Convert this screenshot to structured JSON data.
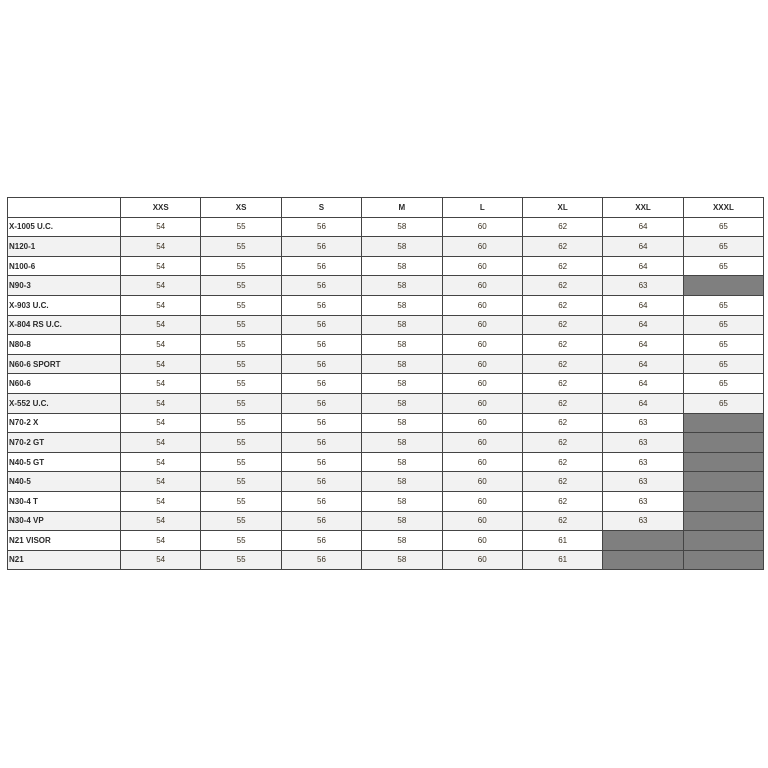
{
  "headers": [
    "",
    "XXS",
    "XS",
    "S",
    "M",
    "L",
    "XL",
    "XXL",
    "XXXL"
  ],
  "rows": [
    {
      "name": "X-1005 U.C.",
      "values": [
        "54",
        "55",
        "56",
        "58",
        "60",
        "62",
        "64",
        "65"
      ]
    },
    {
      "name": "N120-1",
      "values": [
        "54",
        "55",
        "56",
        "58",
        "60",
        "62",
        "64",
        "65"
      ]
    },
    {
      "name": "N100-6",
      "values": [
        "54",
        "55",
        "56",
        "58",
        "60",
        "62",
        "64",
        "65"
      ]
    },
    {
      "name": "N90-3",
      "values": [
        "54",
        "55",
        "56",
        "58",
        "60",
        "62",
        "63",
        null
      ]
    },
    {
      "name": "X-903 U.C.",
      "values": [
        "54",
        "55",
        "56",
        "58",
        "60",
        "62",
        "64",
        "65"
      ]
    },
    {
      "name": "X-804 RS U.C.",
      "values": [
        "54",
        "55",
        "56",
        "58",
        "60",
        "62",
        "64",
        "65"
      ]
    },
    {
      "name": "N80-8",
      "values": [
        "54",
        "55",
        "56",
        "58",
        "60",
        "62",
        "64",
        "65"
      ]
    },
    {
      "name": "N60-6 SPORT",
      "values": [
        "54",
        "55",
        "56",
        "58",
        "60",
        "62",
        "64",
        "65"
      ]
    },
    {
      "name": "N60-6",
      "values": [
        "54",
        "55",
        "56",
        "58",
        "60",
        "62",
        "64",
        "65"
      ]
    },
    {
      "name": "X-552 U.C.",
      "values": [
        "54",
        "55",
        "56",
        "58",
        "60",
        "62",
        "64",
        "65"
      ]
    },
    {
      "name": "N70-2 X",
      "values": [
        "54",
        "55",
        "56",
        "58",
        "60",
        "62",
        "63",
        null
      ]
    },
    {
      "name": "N70-2 GT",
      "values": [
        "54",
        "55",
        "56",
        "58",
        "60",
        "62",
        "63",
        null
      ]
    },
    {
      "name": "N40-5 GT",
      "values": [
        "54",
        "55",
        "56",
        "58",
        "60",
        "62",
        "63",
        null
      ]
    },
    {
      "name": "N40-5",
      "values": [
        "54",
        "55",
        "56",
        "58",
        "60",
        "62",
        "63",
        null
      ]
    },
    {
      "name": "N30-4 T",
      "values": [
        "54",
        "55",
        "56",
        "58",
        "60",
        "62",
        "63",
        null
      ]
    },
    {
      "name": "N30-4 VP",
      "values": [
        "54",
        "55",
        "56",
        "58",
        "60",
        "62",
        "63",
        null
      ]
    },
    {
      "name": "N21 VISOR",
      "values": [
        "54",
        "55",
        "56",
        "58",
        "60",
        "61",
        null,
        null
      ]
    },
    {
      "name": "N21",
      "values": [
        "54",
        "55",
        "56",
        "58",
        "60",
        "61",
        null,
        null
      ]
    }
  ],
  "colors": {
    "unavailable": "#7f7f7f",
    "alt_row": "#f2f2f2"
  }
}
